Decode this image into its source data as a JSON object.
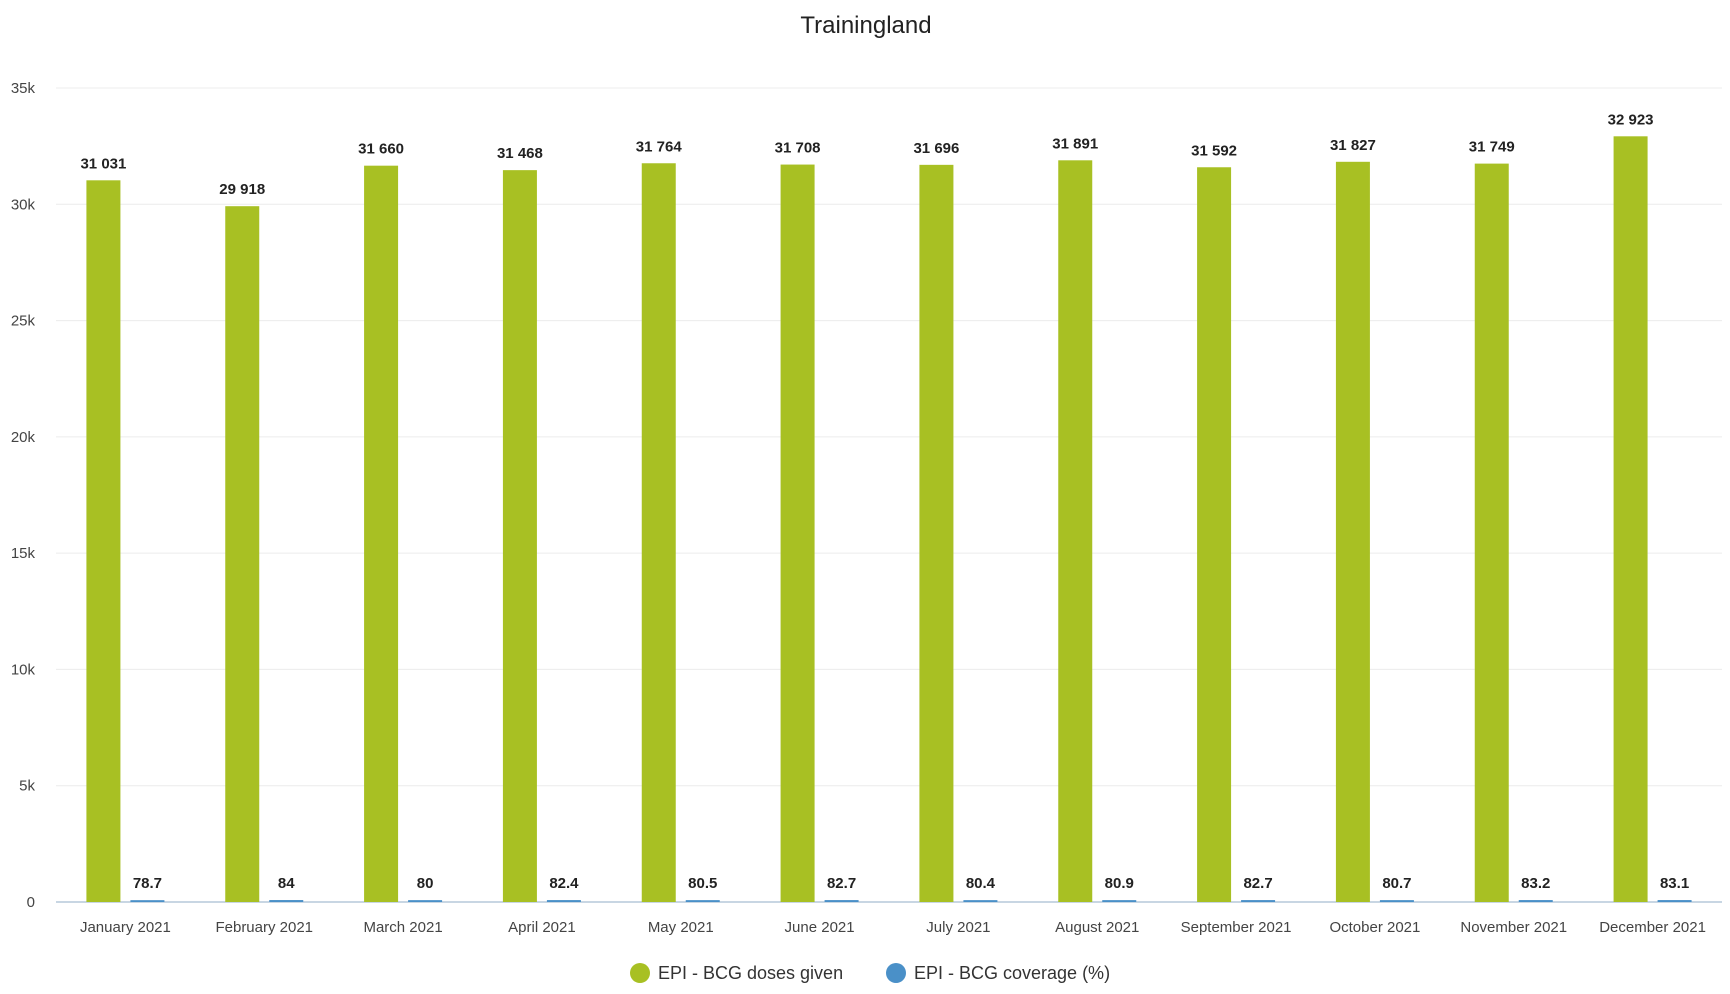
{
  "chart_data": {
    "type": "bar",
    "title": "Trainingland",
    "xlabel": "",
    "ylabel": "",
    "ylim": [
      0,
      35000
    ],
    "yticks": [
      "0",
      "5k",
      "10k",
      "15k",
      "20k",
      "25k",
      "30k",
      "35k"
    ],
    "ytick_values": [
      0,
      5000,
      10000,
      15000,
      20000,
      25000,
      30000,
      35000
    ],
    "grid": true,
    "legend_position": "bottom-center",
    "categories": [
      "January 2021",
      "February 2021",
      "March 2021",
      "April 2021",
      "May 2021",
      "June 2021",
      "July 2021",
      "August 2021",
      "September 2021",
      "October 2021",
      "November 2021",
      "December 2021"
    ],
    "series": [
      {
        "name": "EPI - BCG doses given",
        "color": "#a8c023",
        "values": [
          31031,
          29918,
          31660,
          31468,
          31764,
          31708,
          31696,
          31891,
          31592,
          31827,
          31749,
          32923
        ],
        "labels": [
          "31 031",
          "29 918",
          "31 660",
          "31 468",
          "31 764",
          "31 708",
          "31 696",
          "31 891",
          "31 592",
          "31 827",
          "31 749",
          "32 923"
        ]
      },
      {
        "name": "EPI - BCG coverage (%)",
        "color": "#4a90c8",
        "values": [
          78.7,
          84,
          80,
          82.4,
          80.5,
          82.7,
          80.4,
          80.9,
          82.7,
          80.7,
          83.2,
          83.1
        ],
        "labels": [
          "78.7",
          "84",
          "80",
          "82.4",
          "80.5",
          "82.7",
          "80.4",
          "80.9",
          "82.7",
          "80.7",
          "83.2",
          "83.1"
        ]
      }
    ]
  }
}
